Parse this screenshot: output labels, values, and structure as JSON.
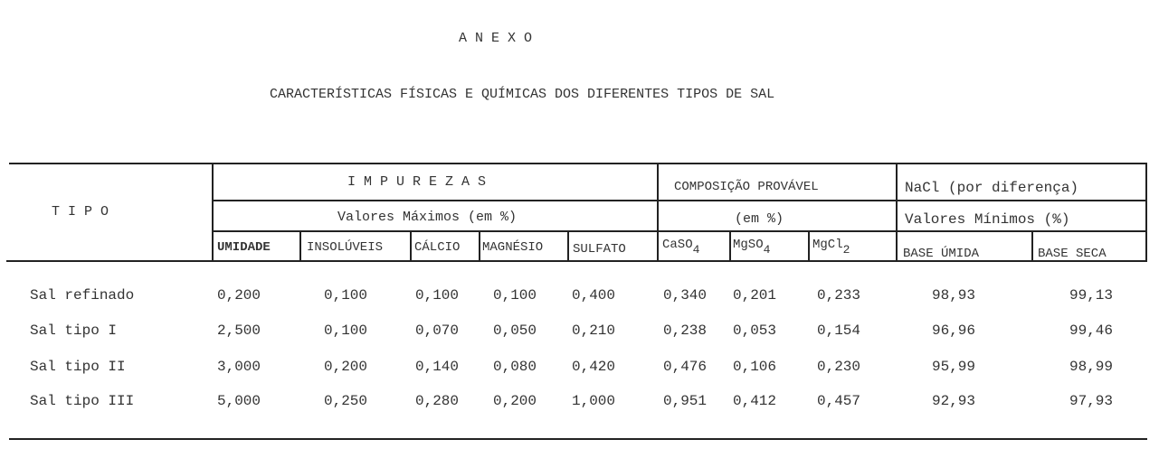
{
  "heading": "A N E X O",
  "title": "CARACTERÍSTICAS FÍSICAS E QUÍMICAS DOS DIFERENTES TIPOS DE SAL",
  "header": {
    "tipo": "T I P O",
    "impurezas": "I M P U R E Z A S",
    "impurezas_sub": "Valores Máximos (em %)",
    "composicao": "COMPOSIÇÃO PROVÁVEL",
    "composicao_sub": "(em %)",
    "nacl": "NaCl (por diferença)",
    "nacl_sub": "Valores Mínimos (%)",
    "columns": [
      "UMIDADE",
      "INSOLÚVEIS",
      "CÁLCIO",
      "MAGNÉSIO",
      "SULFATO"
    ],
    "chem": [
      {
        "base": "CaSO",
        "sub": "4"
      },
      {
        "base": "MgSO",
        "sub": "4"
      },
      {
        "base": "MgCl",
        "sub": "2"
      }
    ],
    "nacl_cols": [
      "BASE ÚMIDA",
      "BASE SECA"
    ]
  },
  "rows": [
    {
      "tipo": "Sal refinado",
      "values": [
        "0,200",
        "0,100",
        "0,100",
        "0,100",
        "0,400",
        "0,340",
        "0,201",
        "0,233",
        "98,93",
        "99,13"
      ]
    },
    {
      "tipo": "Sal tipo I",
      "values": [
        "2,500",
        "0,100",
        "0,070",
        "0,050",
        "0,210",
        "0,238",
        "0,053",
        "0,154",
        "96,96",
        "99,46"
      ]
    },
    {
      "tipo": "Sal tipo II",
      "values": [
        "3,000",
        "0,200",
        "0,140",
        "0,080",
        "0,420",
        "0,476",
        "0,106",
        "0,230",
        "95,99",
        "98,99"
      ]
    },
    {
      "tipo": "Sal tipo III",
      "values": [
        "5,000",
        "0,250",
        "0,280",
        "0,200",
        "1,000",
        "0,951",
        "0,412",
        "0,457",
        "92,93",
        "97,93"
      ]
    }
  ]
}
